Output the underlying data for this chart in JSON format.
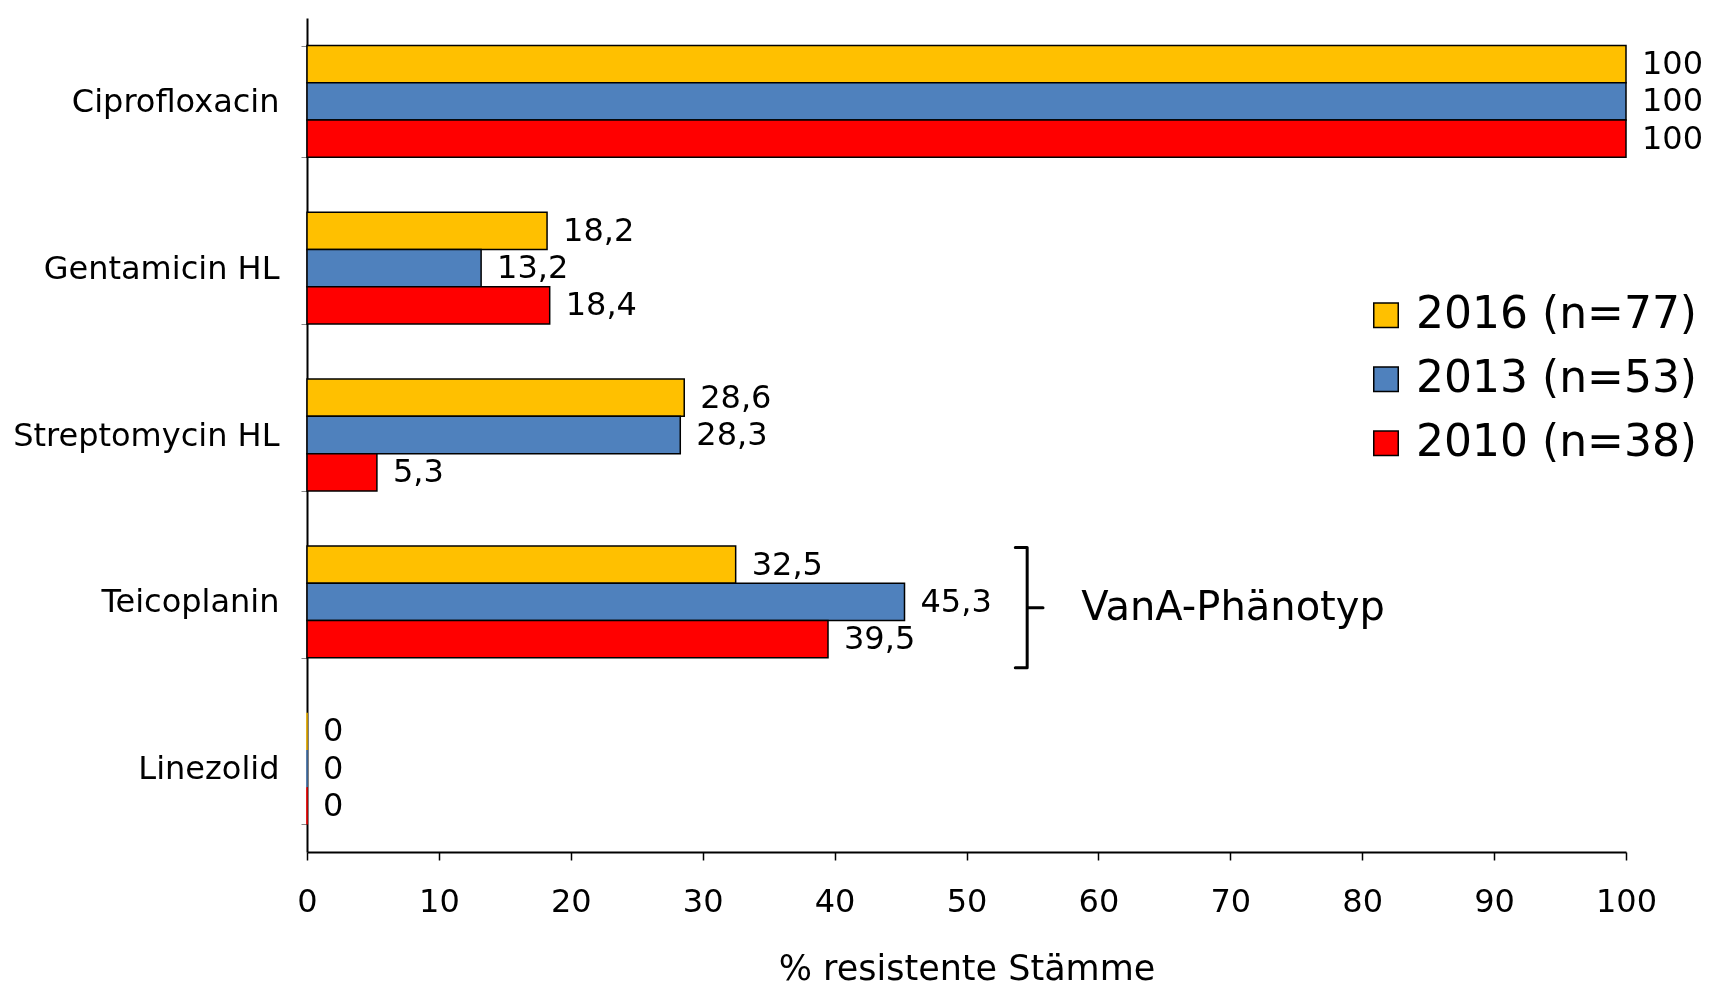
{
  "chart_data": {
    "type": "bar",
    "orientation": "horizontal",
    "categories": [
      "Ciprofloxacin",
      "Gentamicin HL",
      "Streptomycin HL",
      "Teicoplanin",
      "Linezolid"
    ],
    "series": [
      {
        "name": "2016 (n=77)",
        "color": "#ffc000",
        "values": [
          100,
          18.2,
          28.6,
          32.5,
          0
        ],
        "value_labels": [
          "100",
          "18,2",
          "28,6",
          "32,5",
          "0"
        ]
      },
      {
        "name": "2013 (n=53)",
        "color": "#4f81bd",
        "values": [
          100,
          13.2,
          28.3,
          45.3,
          0
        ],
        "value_labels": [
          "100",
          "13,2",
          "28,3",
          "45,3",
          "0"
        ]
      },
      {
        "name": "2010 (n=38)",
        "color": "#ff0000",
        "values": [
          100,
          18.4,
          5.3,
          39.5,
          0
        ],
        "value_labels": [
          "100",
          "18,4",
          "5,3",
          "39,5",
          "0"
        ]
      }
    ],
    "xlabel": "% resistente Stämme",
    "xlim": [
      0,
      100
    ],
    "xticks": [
      0,
      10,
      20,
      30,
      40,
      50,
      60,
      70,
      80,
      90,
      100
    ],
    "legend": "right",
    "annotations": [
      "VanA-Phänotyp"
    ]
  }
}
